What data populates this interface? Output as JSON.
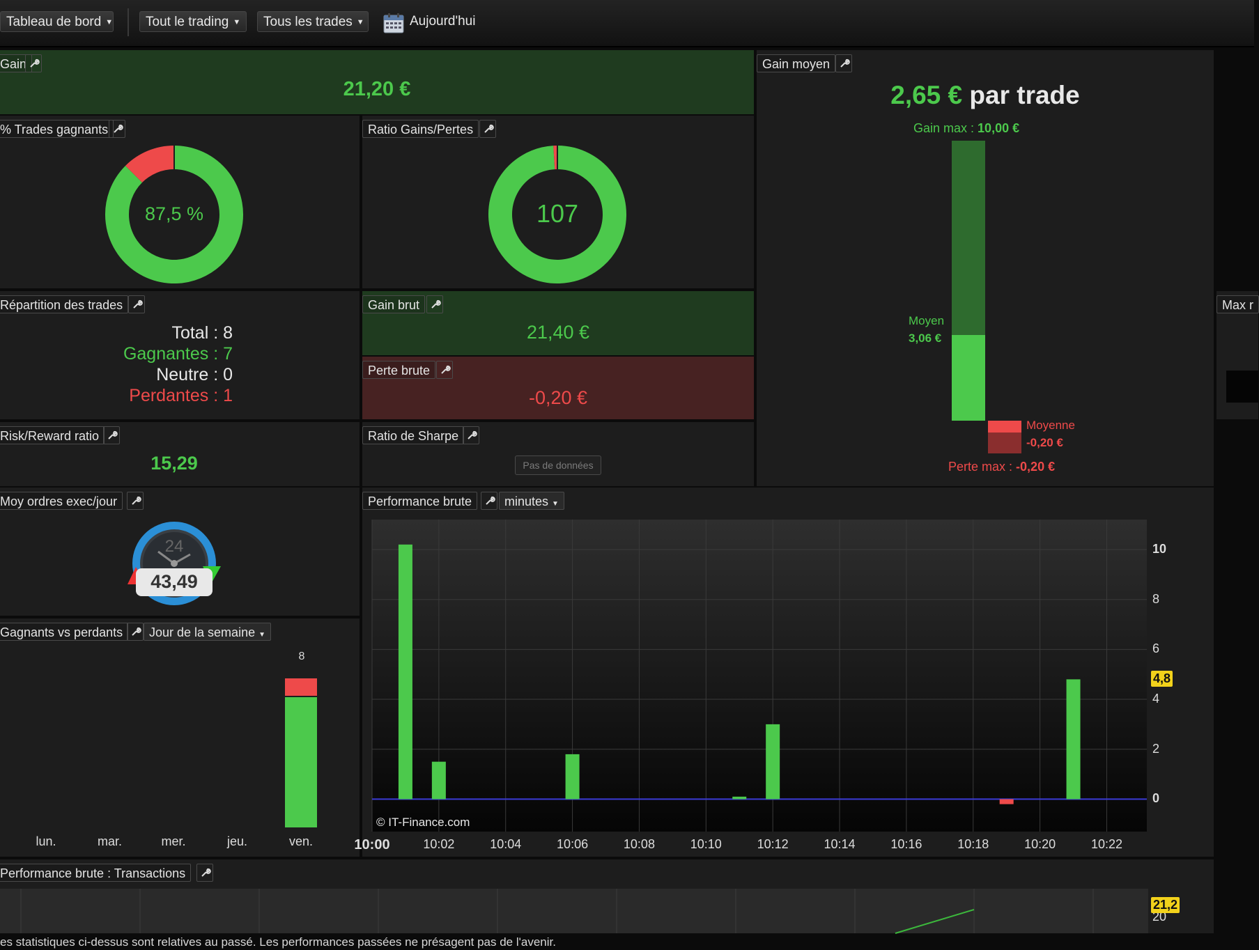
{
  "toolbar": {
    "dashboard": "Tableau de bord",
    "trading": "Tout le trading",
    "trades": "Tous les trades",
    "today": "Aujourd'hui"
  },
  "gain": {
    "title": "Gain",
    "value": "21,20 €"
  },
  "gain_moyen": {
    "title": "Gain moyen",
    "value": "2,65 €",
    "suffix": "par trade",
    "max_label": "Gain max :",
    "max_value": "10,00 €",
    "avg_label": "Moyen",
    "avg_value": "3,06 €",
    "loss_avg_label": "Moyenne",
    "loss_avg_value": "-0,20 €",
    "loss_max_label": "Perte max :",
    "loss_max_value": "-0,20 €",
    "gain_max_num": 10.0,
    "gain_avg_num": 3.06,
    "loss_avg_num": -0.2,
    "loss_max_num": -0.2
  },
  "pct_gagnants": {
    "title": "% Trades gagnants",
    "value": "87,5 %",
    "fraction": 0.875
  },
  "ratio_gp": {
    "title": "Ratio Gains/Pertes",
    "value": "107",
    "loss_fraction": 0.0093
  },
  "repartition": {
    "title": "Répartition des trades",
    "total": "Total : 8",
    "gagnantes": "Gagnantes : 7",
    "neutre": "Neutre : 0",
    "perdantes": "Perdantes : 1"
  },
  "gain_brut": {
    "title": "Gain brut",
    "value": "21,40 €"
  },
  "perte_brute": {
    "title": "Perte brute",
    "value": "-0,20 €"
  },
  "risk_reward": {
    "title": "Risk/Reward ratio",
    "value": "15,29"
  },
  "sharpe": {
    "title": "Ratio de Sharpe",
    "value": "Pas de données"
  },
  "moy_ordres": {
    "title": "Moy ordres exec/jour",
    "value": "43,49",
    "dial": "24"
  },
  "max_partial": {
    "title": "Max r"
  },
  "gagnants_perdants": {
    "title": "Gagnants vs perdants",
    "dropdown": "Jour de la semaine",
    "total_label": "8",
    "days": [
      "lun.",
      "mar.",
      "mer.",
      "jeu.",
      "ven."
    ]
  },
  "perf_brute": {
    "title": "Performance brute",
    "dropdown": "minutes",
    "watermark": "© IT-Finance.com",
    "last_value": "4,8",
    "x_ticks": [
      "10:00",
      "10:02",
      "10:04",
      "10:06",
      "10:08",
      "10:10",
      "10:12",
      "10:14",
      "10:16",
      "10:18",
      "10:20",
      "10:22"
    ],
    "y_ticks": [
      "10",
      "8",
      "6",
      "4",
      "2",
      "0"
    ]
  },
  "perf_transactions": {
    "title": "Performance brute : Transactions",
    "last_value": "21,2",
    "y_tick": "20"
  },
  "footer": "es statistiques ci-dessus sont relatives au passé. Les performances passées ne présagent pas de l'avenir.",
  "colors": {
    "green": "#4cc94c",
    "red": "#ee4a4a",
    "panel": "#1d1d1d"
  },
  "chart_data": [
    {
      "type": "bar",
      "title": "Performance brute",
      "x": [
        "10:01",
        "10:02",
        "10:06",
        "10:11",
        "10:12",
        "10:19",
        "10:21"
      ],
      "values": [
        10.2,
        1.5,
        1.8,
        0.1,
        3.0,
        -0.2,
        4.8
      ],
      "ylim": [
        -1.3,
        11.2
      ],
      "xlim_minutes": [
        0,
        23.2
      ],
      "y_ticks": [
        0,
        2,
        4,
        6,
        8,
        10
      ],
      "grid": true
    },
    {
      "type": "bar",
      "title": "Gagnants vs perdants",
      "categories": [
        "lun.",
        "mar.",
        "mer.",
        "jeu.",
        "ven."
      ],
      "series": [
        {
          "name": "Gagnants",
          "values": [
            0,
            0,
            0,
            0,
            7
          ]
        },
        {
          "name": "Perdants",
          "values": [
            0,
            0,
            0,
            0,
            1
          ]
        }
      ]
    }
  ]
}
